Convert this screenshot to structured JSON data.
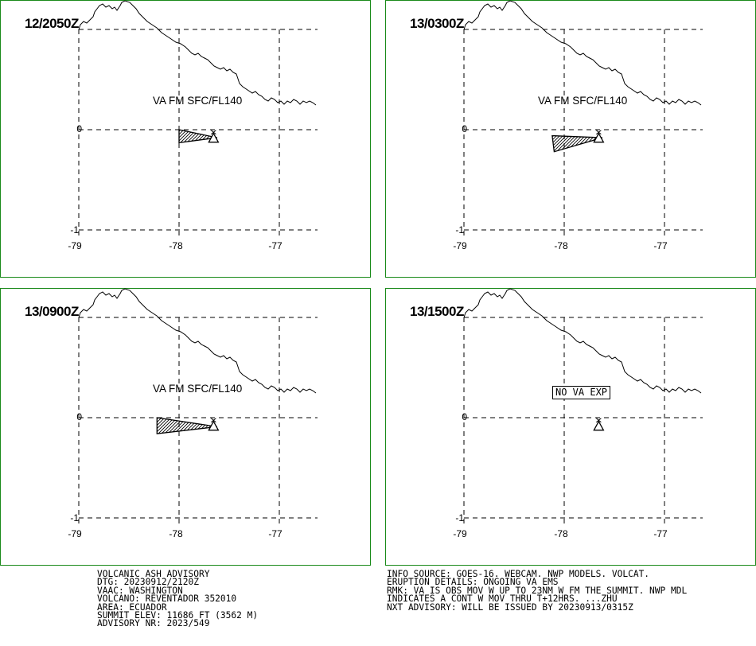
{
  "colors": {
    "border": "#1a8a1a",
    "ink": "#000000",
    "background": "#ffffff"
  },
  "axes": {
    "lat_labels": [
      "0",
      "-1"
    ],
    "lon_labels": [
      "-79",
      "-78",
      "-77"
    ]
  },
  "panels": [
    {
      "time": "12/2050Z",
      "layer_label": "VA FM SFC/FL140",
      "ash_polygon": [
        [
          -78.0,
          0.0
        ],
        [
          -77.62,
          -0.08
        ],
        [
          -78.0,
          -0.13
        ]
      ],
      "volcano": {
        "lat": -0.077,
        "lon": -77.656,
        "symbol": "volcano-triangle-icon"
      }
    },
    {
      "time": "13/0300Z",
      "layer_label": "VA FM SFC/FL140",
      "ash_polygon": [
        [
          -78.12,
          -0.06
        ],
        [
          -77.62,
          -0.08
        ],
        [
          -78.1,
          -0.22
        ]
      ],
      "volcano": {
        "lat": -0.077,
        "lon": -77.656,
        "symbol": "volcano-triangle-icon"
      }
    },
    {
      "time": "13/0900Z",
      "layer_label": "VA FM SFC/FL140",
      "ash_polygon": [
        [
          -78.22,
          0.0
        ],
        [
          -77.62,
          -0.09
        ],
        [
          -78.22,
          -0.16
        ]
      ],
      "volcano": {
        "lat": -0.077,
        "lon": -77.656,
        "symbol": "volcano-triangle-icon"
      }
    },
    {
      "time": "13/1500Z",
      "no_va_text": "NO VA EXP",
      "volcano": {
        "lat": -0.077,
        "lon": -77.656,
        "symbol": "volcano-triangle-icon"
      }
    }
  ],
  "advisory_left": [
    "VOLCANIC ASH ADVISORY",
    "DTG: 20230912/2120Z",
    "VAAC: WASHINGTON",
    "VOLCANO: REVENTADOR 352010",
    "AREA: ECUADOR",
    "SUMMIT ELEV: 11686 FT (3562 M)",
    "ADVISORY NR: 2023/549"
  ],
  "advisory_right": [
    "INFO SOURCE: GOES-16. WEBCAM. NWP MODELS. VOLCAT.",
    "ERUPTION DETAILS: ONGOING VA EMS",
    "RMK: VA IS OBS MOV W UP TO 23NM W FM THE SUMMIT. NWP MDL",
    "INDICATES A CONT W MOV THRU T+12HRS. ...ZHU",
    "NXT ADVISORY: WILL BE ISSUED BY 20230913/0315Z"
  ]
}
